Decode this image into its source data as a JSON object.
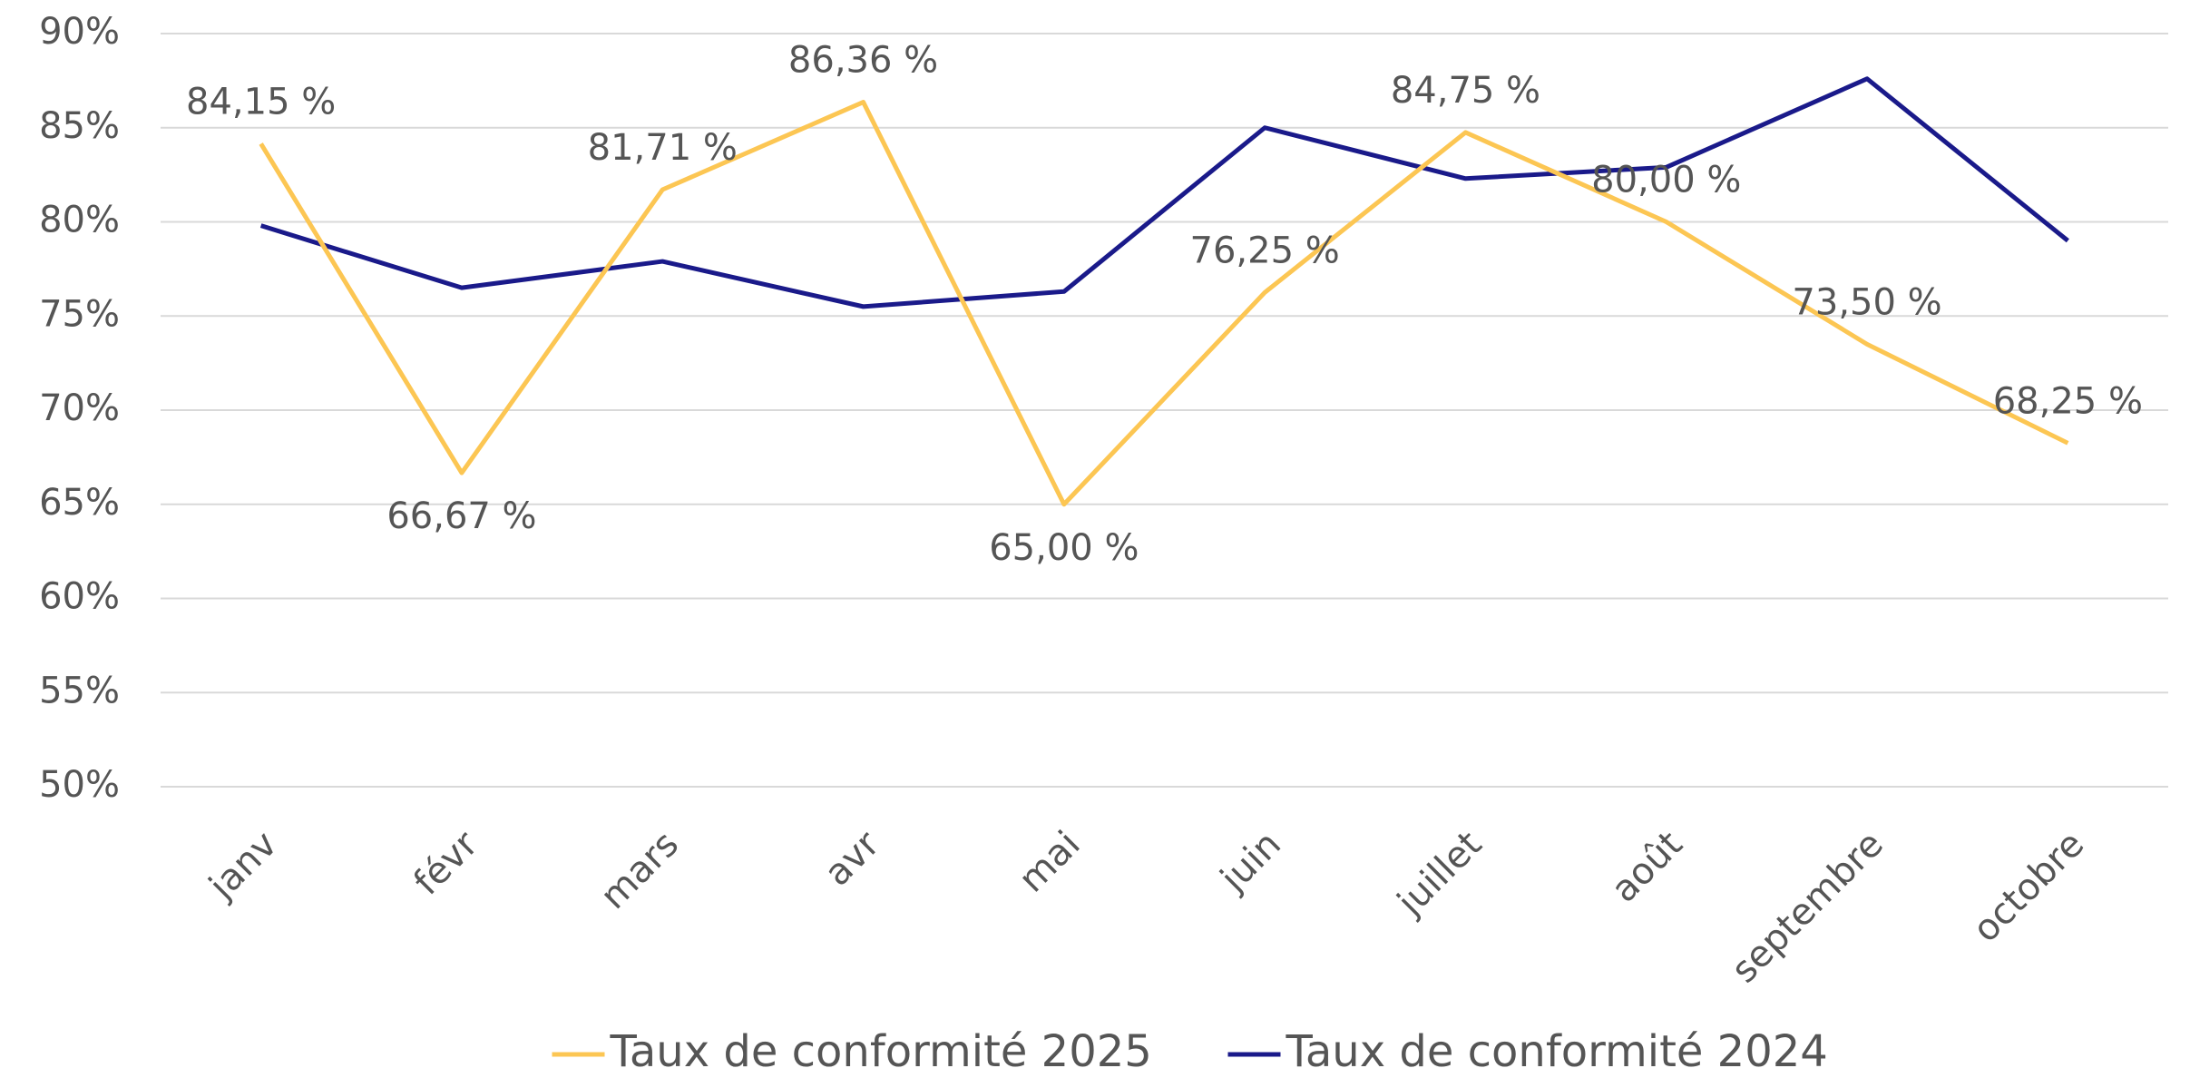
{
  "chart_data": {
    "type": "line",
    "categories": [
      "janv",
      "févr",
      "mars",
      "avr",
      "mai",
      "juin",
      "juillet",
      "août",
      "septembre",
      "octobre"
    ],
    "series": [
      {
        "name": "Taux de conformité 2025",
        "color": "#fcc653",
        "values": [
          84.15,
          66.67,
          81.71,
          86.36,
          65.0,
          76.25,
          84.75,
          80.0,
          73.5,
          68.25
        ],
        "value_labels": [
          "84,15 %",
          "66,67 %",
          "81,71 %",
          "86,36 %",
          "65,00 %",
          "76,25 %",
          "84,75 %",
          "80,00 %",
          "73,50 %",
          "68,25 %"
        ]
      },
      {
        "name": "Taux de conformité 2024",
        "color": "#1a1a8a",
        "values": [
          79.8,
          76.5,
          77.9,
          75.5,
          76.3,
          85.0,
          82.3,
          82.9,
          87.6,
          79.0
        ]
      }
    ],
    "ylim": [
      50,
      90
    ],
    "yticks": [
      {
        "value": 50,
        "label": "50%"
      },
      {
        "value": 55,
        "label": "55%"
      },
      {
        "value": 60,
        "label": "60%"
      },
      {
        "value": 65,
        "label": "65%"
      },
      {
        "value": 70,
        "label": "70%"
      },
      {
        "value": 75,
        "label": "75%"
      },
      {
        "value": 80,
        "label": "80%"
      },
      {
        "value": 85,
        "label": "85%"
      },
      {
        "value": 90,
        "label": "90%"
      }
    ],
    "grid": true,
    "legend": "bottom"
  }
}
